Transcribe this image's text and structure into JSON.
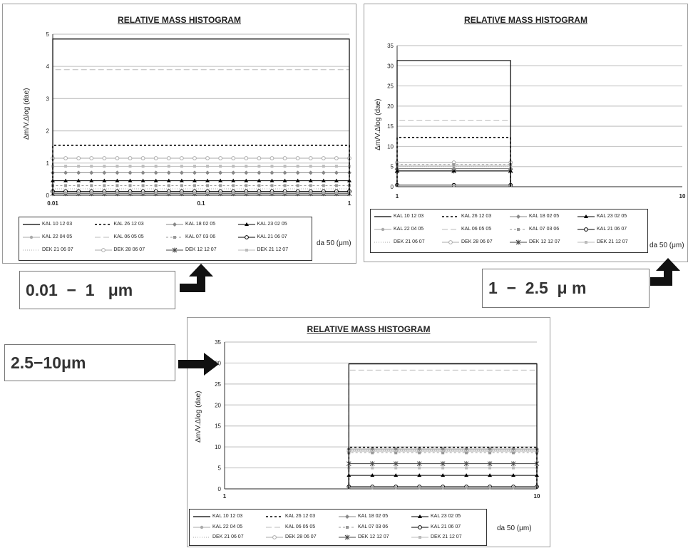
{
  "legend_names": [
    "KAL 10 12 03",
    "KAL 26 12 03",
    "KAL 18 02 05",
    "KAL 23 02 05",
    "KAL 22 04 05",
    "KAL 06 05 05",
    "KAL 07 03 06",
    "KAL 21 06 07",
    "DEK 21 06 07",
    "DEK 28 06 07",
    "DEK 12 12 07",
    "DEK 21 12 07"
  ],
  "callouts": {
    "first": "0.01  −  1   μm",
    "second": "1  −  2.5  μ m",
    "third": "2.5−10μm"
  },
  "chart_data": [
    {
      "type": "line",
      "title": "RELATIVE MASS HISTOGRAM",
      "ylabel": "Δm/V.Δlog (dae)",
      "xlabel": "da 50 (μm)",
      "x_scale": "log",
      "x_range": [
        0.01,
        1
      ],
      "x_ticks": [
        "0.01",
        "0.1",
        "1"
      ],
      "ylim": [
        0,
        5
      ],
      "y_ticks": [
        "0",
        "1",
        "2",
        "3",
        "4",
        "5"
      ],
      "grid": true,
      "legend_position": "bottom",
      "series": [
        {
          "name": "KAL 10 12 03",
          "values": [
            4.85
          ]
        },
        {
          "name": "KAL 26 12 03",
          "values": [
            1.55
          ]
        },
        {
          "name": "KAL 18 02 05",
          "values": [
            0.7
          ]
        },
        {
          "name": "KAL 23 02 05",
          "values": [
            0.45
          ]
        },
        {
          "name": "KAL 22 04 05",
          "values": [
            0.08
          ]
        },
        {
          "name": "KAL 06 05 05",
          "values": [
            3.9
          ]
        },
        {
          "name": "KAL 07 03 06",
          "values": [
            0.3
          ]
        },
        {
          "name": "KAL 21 06 07",
          "values": [
            0.12
          ]
        },
        {
          "name": "DEK 21 06 07",
          "values": [
            0.2
          ]
        },
        {
          "name": "DEK 28 06 07",
          "values": [
            1.15
          ]
        },
        {
          "name": "DEK 12 12 07",
          "values": [
            0.05
          ]
        },
        {
          "name": "DEK 21 12 07",
          "values": [
            0.9
          ]
        }
      ]
    },
    {
      "type": "line",
      "title": "RELATIVE MASS HISTOGRAM",
      "ylabel": "Δm/V.Δlog (dae)",
      "xlabel": "da 50 (μm)",
      "x_scale": "log",
      "x_range": [
        1,
        10
      ],
      "x_segment": [
        1,
        2.5
      ],
      "x_ticks": [
        "1",
        "10"
      ],
      "ylim": [
        0,
        35
      ],
      "y_ticks": [
        "0",
        "5",
        "10",
        "15",
        "20",
        "25",
        "30",
        "35"
      ],
      "grid": true,
      "legend_position": "bottom",
      "series": [
        {
          "name": "KAL 10 12 03",
          "values": [
            31.3
          ]
        },
        {
          "name": "KAL 26 12 03",
          "values": [
            12.2
          ]
        },
        {
          "name": "KAL 18 02 05",
          "values": [
            4.5
          ]
        },
        {
          "name": "KAL 23 02 05",
          "values": [
            3.9
          ]
        },
        {
          "name": "KAL 22 04 05",
          "values": [
            0.3
          ]
        },
        {
          "name": "KAL 06 05 05",
          "values": [
            16.4
          ]
        },
        {
          "name": "KAL 07 03 06",
          "values": [
            5.5
          ]
        },
        {
          "name": "KAL 21 06 07",
          "values": [
            0.4
          ]
        },
        {
          "name": "DEK 21 06 07",
          "values": [
            5.0
          ]
        },
        {
          "name": "DEK 28 06 07",
          "values": [
            6.0
          ]
        },
        {
          "name": "DEK 12 12 07",
          "values": [
            3.9
          ]
        },
        {
          "name": "DEK 21 12 07",
          "values": [
            5.3
          ]
        }
      ]
    },
    {
      "type": "line",
      "title": "RELATIVE MASS HISTOGRAM",
      "ylabel": "Δm/V.Δlog (dae)",
      "xlabel": "da 50 (μm)",
      "x_scale": "log",
      "x_range": [
        1,
        10
      ],
      "x_segment": [
        2.5,
        10
      ],
      "x_ticks": [
        "1",
        "10"
      ],
      "ylim": [
        0,
        35
      ],
      "y_ticks": [
        "0",
        "5",
        "10",
        "15",
        "20",
        "25",
        "30",
        "35"
      ],
      "grid": true,
      "legend_position": "bottom",
      "series": [
        {
          "name": "KAL 10 12 03",
          "values": [
            29.8
          ]
        },
        {
          "name": "KAL 26 12 03",
          "values": [
            9.9
          ]
        },
        {
          "name": "KAL 18 02 05",
          "values": [
            9.5
          ]
        },
        {
          "name": "KAL 23 02 05",
          "values": [
            3.2
          ]
        },
        {
          "name": "KAL 22 04 05",
          "values": [
            0.3
          ]
        },
        {
          "name": "KAL 06 05 05",
          "values": [
            28.3
          ]
        },
        {
          "name": "KAL 07 03 06",
          "values": [
            8.6
          ]
        },
        {
          "name": "KAL 21 06 07",
          "values": [
            0.5
          ]
        },
        {
          "name": "DEK 21 06 07",
          "values": [
            9.2
          ]
        },
        {
          "name": "DEK 28 06 07",
          "values": [
            9.0
          ]
        },
        {
          "name": "DEK 12 12 07",
          "values": [
            6.0
          ]
        },
        {
          "name": "DEK 21 12 07",
          "values": [
            5.0
          ]
        }
      ]
    }
  ]
}
